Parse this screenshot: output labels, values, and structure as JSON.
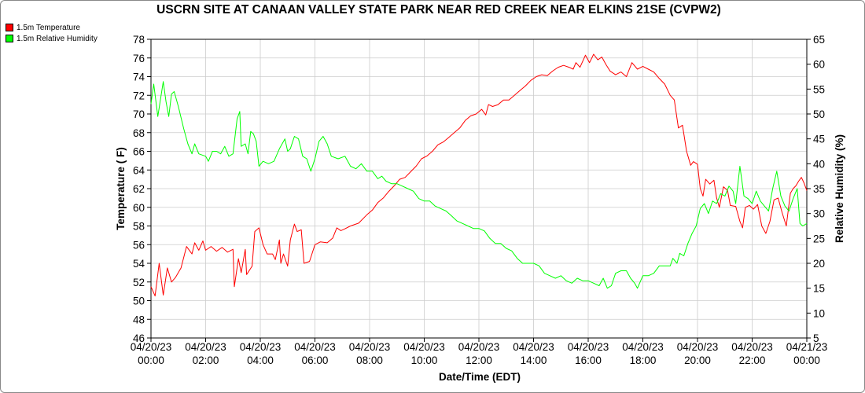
{
  "chart_data": {
    "type": "line",
    "title": "USCRN SITE AT CANAAN VALLEY STATE PARK NEAR RED CREEK NEAR ELKINS 21SE (CVPW2)",
    "xlabel": "Date/Time (EDT)",
    "ylabel_left": "Temperature ( F)",
    "ylabel_right": "Relative Humidity (%)",
    "x_ticks": [
      {
        "date": "04/20/23",
        "time": "00:00"
      },
      {
        "date": "04/20/23",
        "time": "02:00"
      },
      {
        "date": "04/20/23",
        "time": "04:00"
      },
      {
        "date": "04/20/23",
        "time": "06:00"
      },
      {
        "date": "04/20/23",
        "time": "08:00"
      },
      {
        "date": "04/20/23",
        "time": "10:00"
      },
      {
        "date": "04/20/23",
        "time": "12:00"
      },
      {
        "date": "04/20/23",
        "time": "14:00"
      },
      {
        "date": "04/20/23",
        "time": "16:00"
      },
      {
        "date": "04/20/23",
        "time": "18:00"
      },
      {
        "date": "04/20/23",
        "time": "20:00"
      },
      {
        "date": "04/20/23",
        "time": "22:00"
      },
      {
        "date": "04/21/23",
        "time": "00:00"
      }
    ],
    "xlim_hours": [
      0,
      24
    ],
    "ylim_left": [
      46,
      78
    ],
    "y_ticks_left": [
      46,
      48,
      50,
      52,
      54,
      56,
      58,
      60,
      62,
      64,
      66,
      68,
      70,
      72,
      74,
      76,
      78
    ],
    "ylim_right": [
      5,
      65
    ],
    "y_ticks_right": [
      5,
      10,
      15,
      20,
      25,
      30,
      35,
      40,
      45,
      50,
      55,
      60,
      65
    ],
    "legend_position": "top-left",
    "series": [
      {
        "name": "1.5m Temperature",
        "color": "#ff0000",
        "axis": "left",
        "points": [
          [
            0,
            51.5
          ],
          [
            0.15,
            50.5
          ],
          [
            0.3,
            54.0
          ],
          [
            0.45,
            50.6
          ],
          [
            0.6,
            53.5
          ],
          [
            0.75,
            52.0
          ],
          [
            0.9,
            52.5
          ],
          [
            1.1,
            53.5
          ],
          [
            1.3,
            55.8
          ],
          [
            1.5,
            55.0
          ],
          [
            1.6,
            56.2
          ],
          [
            1.75,
            55.4
          ],
          [
            1.9,
            56.4
          ],
          [
            2.0,
            55.4
          ],
          [
            2.2,
            55.8
          ],
          [
            2.4,
            55.3
          ],
          [
            2.6,
            55.7
          ],
          [
            2.8,
            55.2
          ],
          [
            3.0,
            55.5
          ],
          [
            3.05,
            51.5
          ],
          [
            3.2,
            54.5
          ],
          [
            3.3,
            53.0
          ],
          [
            3.45,
            55.5
          ],
          [
            3.5,
            52.8
          ],
          [
            3.7,
            53.7
          ],
          [
            3.8,
            57.4
          ],
          [
            3.95,
            57.8
          ],
          [
            4.1,
            56.0
          ],
          [
            4.25,
            55.0
          ],
          [
            4.45,
            55.0
          ],
          [
            4.55,
            54.4
          ],
          [
            4.7,
            56.5
          ],
          [
            4.75,
            54.0
          ],
          [
            4.85,
            55.0
          ],
          [
            5.0,
            53.7
          ],
          [
            5.1,
            56.5
          ],
          [
            5.25,
            58.2
          ],
          [
            5.35,
            57.4
          ],
          [
            5.5,
            57.6
          ],
          [
            5.6,
            54.0
          ],
          [
            5.8,
            54.2
          ],
          [
            6.0,
            56.0
          ],
          [
            6.2,
            56.3
          ],
          [
            6.45,
            56.2
          ],
          [
            6.65,
            56.7
          ],
          [
            6.8,
            57.8
          ],
          [
            6.95,
            57.5
          ],
          [
            7.1,
            57.7
          ],
          [
            7.3,
            58.0
          ],
          [
            7.6,
            58.3
          ],
          [
            7.9,
            59.2
          ],
          [
            8.1,
            59.7
          ],
          [
            8.3,
            60.5
          ],
          [
            8.5,
            61.0
          ],
          [
            8.7,
            61.7
          ],
          [
            8.9,
            62.3
          ],
          [
            9.1,
            63.0
          ],
          [
            9.3,
            63.2
          ],
          [
            9.5,
            63.8
          ],
          [
            9.7,
            64.4
          ],
          [
            9.9,
            65.2
          ],
          [
            10.1,
            65.5
          ],
          [
            10.3,
            66.0
          ],
          [
            10.5,
            66.7
          ],
          [
            10.7,
            67.0
          ],
          [
            10.9,
            67.5
          ],
          [
            11.1,
            68.0
          ],
          [
            11.3,
            68.5
          ],
          [
            11.5,
            69.3
          ],
          [
            11.7,
            69.8
          ],
          [
            11.9,
            70.0
          ],
          [
            12.1,
            70.5
          ],
          [
            12.25,
            69.9
          ],
          [
            12.35,
            71.0
          ],
          [
            12.5,
            70.8
          ],
          [
            12.7,
            71.0
          ],
          [
            12.9,
            71.5
          ],
          [
            13.1,
            71.5
          ],
          [
            13.3,
            72.0
          ],
          [
            13.5,
            72.5
          ],
          [
            13.7,
            73.0
          ],
          [
            13.9,
            73.6
          ],
          [
            14.1,
            74.0
          ],
          [
            14.3,
            74.2
          ],
          [
            14.5,
            74.1
          ],
          [
            14.7,
            74.6
          ],
          [
            14.9,
            75.0
          ],
          [
            15.1,
            75.2
          ],
          [
            15.3,
            75.0
          ],
          [
            15.45,
            74.8
          ],
          [
            15.55,
            75.5
          ],
          [
            15.7,
            75.0
          ],
          [
            15.9,
            76.3
          ],
          [
            16.05,
            75.5
          ],
          [
            16.2,
            76.4
          ],
          [
            16.35,
            75.8
          ],
          [
            16.5,
            76.1
          ],
          [
            16.65,
            75.3
          ],
          [
            16.8,
            74.6
          ],
          [
            17.0,
            74.2
          ],
          [
            17.2,
            74.5
          ],
          [
            17.4,
            74.0
          ],
          [
            17.6,
            75.5
          ],
          [
            17.8,
            74.8
          ],
          [
            18.0,
            75.1
          ],
          [
            18.2,
            74.8
          ],
          [
            18.4,
            74.5
          ],
          [
            18.6,
            73.8
          ],
          [
            18.8,
            73.2
          ],
          [
            19.0,
            72.0
          ],
          [
            19.15,
            71.5
          ],
          [
            19.3,
            68.5
          ],
          [
            19.45,
            68.8
          ],
          [
            19.6,
            66.0
          ],
          [
            19.75,
            64.5
          ],
          [
            19.85,
            64.9
          ],
          [
            20.0,
            64.6
          ],
          [
            20.1,
            62.0
          ],
          [
            20.2,
            61.2
          ],
          [
            20.3,
            63.0
          ],
          [
            20.45,
            62.5
          ],
          [
            20.6,
            62.9
          ],
          [
            20.7,
            61.0
          ],
          [
            20.8,
            60.0
          ],
          [
            20.95,
            62.2
          ],
          [
            21.1,
            61.8
          ],
          [
            21.2,
            60.2
          ],
          [
            21.4,
            60.1
          ],
          [
            21.55,
            58.5
          ],
          [
            21.65,
            57.8
          ],
          [
            21.75,
            60.0
          ],
          [
            21.9,
            60.2
          ],
          [
            22.05,
            59.8
          ],
          [
            22.2,
            60.3
          ],
          [
            22.35,
            58.0
          ],
          [
            22.5,
            57.2
          ],
          [
            22.65,
            58.5
          ],
          [
            22.8,
            60.8
          ],
          [
            22.95,
            61.0
          ],
          [
            23.1,
            59.4
          ],
          [
            23.25,
            58.0
          ],
          [
            23.4,
            61.5
          ],
          [
            23.5,
            62.0
          ],
          [
            23.6,
            62.3
          ],
          [
            23.7,
            62.8
          ],
          [
            23.8,
            63.2
          ],
          [
            23.9,
            62.6
          ],
          [
            24.0,
            61.8
          ]
        ]
      },
      {
        "name": "1.5m Relative Humidity",
        "color": "#00ff00",
        "axis": "right",
        "points": [
          [
            0,
            52.0
          ],
          [
            0.1,
            56.0
          ],
          [
            0.25,
            49.5
          ],
          [
            0.45,
            56.5
          ],
          [
            0.55,
            52.5
          ],
          [
            0.65,
            49.5
          ],
          [
            0.75,
            54.0
          ],
          [
            0.85,
            54.5
          ],
          [
            1.0,
            51.5
          ],
          [
            1.2,
            47.0
          ],
          [
            1.35,
            44.0
          ],
          [
            1.5,
            42.0
          ],
          [
            1.6,
            44.0
          ],
          [
            1.75,
            42.0
          ],
          [
            2.0,
            41.5
          ],
          [
            2.1,
            40.5
          ],
          [
            2.25,
            42.5
          ],
          [
            2.4,
            42.5
          ],
          [
            2.55,
            42.0
          ],
          [
            2.7,
            43.5
          ],
          [
            2.85,
            41.5
          ],
          [
            3.0,
            42.0
          ],
          [
            3.15,
            49.0
          ],
          [
            3.25,
            50.5
          ],
          [
            3.3,
            43.5
          ],
          [
            3.45,
            44.0
          ],
          [
            3.55,
            42.0
          ],
          [
            3.65,
            46.5
          ],
          [
            3.75,
            46.0
          ],
          [
            3.85,
            44.5
          ],
          [
            3.95,
            39.5
          ],
          [
            4.1,
            40.5
          ],
          [
            4.3,
            40.0
          ],
          [
            4.5,
            40.5
          ],
          [
            4.7,
            43.0
          ],
          [
            4.9,
            45.0
          ],
          [
            5.0,
            42.5
          ],
          [
            5.1,
            43.0
          ],
          [
            5.25,
            45.5
          ],
          [
            5.4,
            45.0
          ],
          [
            5.55,
            41.5
          ],
          [
            5.7,
            41.0
          ],
          [
            5.85,
            38.5
          ],
          [
            6.0,
            41.0
          ],
          [
            6.15,
            44.5
          ],
          [
            6.3,
            45.5
          ],
          [
            6.45,
            44.0
          ],
          [
            6.6,
            41.5
          ],
          [
            6.85,
            41.0
          ],
          [
            7.1,
            41.5
          ],
          [
            7.3,
            39.5
          ],
          [
            7.5,
            39.0
          ],
          [
            7.7,
            40.0
          ],
          [
            7.9,
            38.5
          ],
          [
            8.1,
            38.5
          ],
          [
            8.3,
            37.0
          ],
          [
            8.45,
            37.5
          ],
          [
            8.6,
            36.5
          ],
          [
            8.8,
            36.0
          ],
          [
            9.0,
            36.0
          ],
          [
            9.2,
            35.5
          ],
          [
            9.4,
            35.0
          ],
          [
            9.6,
            34.5
          ],
          [
            9.8,
            33.0
          ],
          [
            10.0,
            32.5
          ],
          [
            10.2,
            32.5
          ],
          [
            10.4,
            31.5
          ],
          [
            10.6,
            31.0
          ],
          [
            10.8,
            30.5
          ],
          [
            11.0,
            29.5
          ],
          [
            11.2,
            28.5
          ],
          [
            11.4,
            28.0
          ],
          [
            11.6,
            27.5
          ],
          [
            11.8,
            27.0
          ],
          [
            12.0,
            27.0
          ],
          [
            12.2,
            26.5
          ],
          [
            12.4,
            25.0
          ],
          [
            12.6,
            24.0
          ],
          [
            12.8,
            24.0
          ],
          [
            13.0,
            23.0
          ],
          [
            13.2,
            22.5
          ],
          [
            13.4,
            21.0
          ],
          [
            13.6,
            20.0
          ],
          [
            13.8,
            20.0
          ],
          [
            14.0,
            20.0
          ],
          [
            14.2,
            19.5
          ],
          [
            14.4,
            18.0
          ],
          [
            14.6,
            17.5
          ],
          [
            14.8,
            17.0
          ],
          [
            15.0,
            17.5
          ],
          [
            15.2,
            16.5
          ],
          [
            15.4,
            16.0
          ],
          [
            15.6,
            17.0
          ],
          [
            15.8,
            16.5
          ],
          [
            16.0,
            16.5
          ],
          [
            16.2,
            16.0
          ],
          [
            16.4,
            15.5
          ],
          [
            16.55,
            17.0
          ],
          [
            16.7,
            15.0
          ],
          [
            16.85,
            15.5
          ],
          [
            17.0,
            18.0
          ],
          [
            17.2,
            18.5
          ],
          [
            17.4,
            18.5
          ],
          [
            17.55,
            17.0
          ],
          [
            17.7,
            16.0
          ],
          [
            17.8,
            15.0
          ],
          [
            18.0,
            17.5
          ],
          [
            18.2,
            17.5
          ],
          [
            18.4,
            18.0
          ],
          [
            18.6,
            19.5
          ],
          [
            18.8,
            19.5
          ],
          [
            19.0,
            19.5
          ],
          [
            19.1,
            21.0
          ],
          [
            19.25,
            20.0
          ],
          [
            19.35,
            22.0
          ],
          [
            19.5,
            21.5
          ],
          [
            19.65,
            24.0
          ],
          [
            19.8,
            26.0
          ],
          [
            19.95,
            27.5
          ],
          [
            20.1,
            31.0
          ],
          [
            20.25,
            32.0
          ],
          [
            20.4,
            30.0
          ],
          [
            20.55,
            32.5
          ],
          [
            20.7,
            32.0
          ],
          [
            20.85,
            34.0
          ],
          [
            21.0,
            33.5
          ],
          [
            21.15,
            35.5
          ],
          [
            21.3,
            34.5
          ],
          [
            21.4,
            32.0
          ],
          [
            21.55,
            39.5
          ],
          [
            21.7,
            33.5
          ],
          [
            21.85,
            33.0
          ],
          [
            22.0,
            32.0
          ],
          [
            22.15,
            34.5
          ],
          [
            22.3,
            32.5
          ],
          [
            22.45,
            31.5
          ],
          [
            22.6,
            30.5
          ],
          [
            22.75,
            35.0
          ],
          [
            22.9,
            38.5
          ],
          [
            23.05,
            33.5
          ],
          [
            23.2,
            31.5
          ],
          [
            23.35,
            30.5
          ],
          [
            23.5,
            33.0
          ],
          [
            23.65,
            35.0
          ],
          [
            23.75,
            28.0
          ],
          [
            23.85,
            27.5
          ],
          [
            24.0,
            28.0
          ]
        ]
      }
    ]
  }
}
